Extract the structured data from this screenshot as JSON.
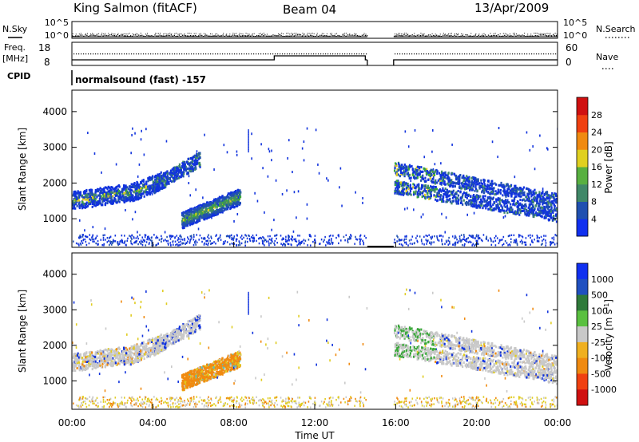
{
  "header": {
    "station": "King Salmon (fitACF)",
    "beam": "Beam 04",
    "date": "13/Apr/2009"
  },
  "side_labels": {
    "nsky": "N.Sky",
    "freq_top": "Freq.",
    "freq_unit": "[MHz]",
    "cpid": "CPID",
    "nsearch": "N.Search",
    "nave": "Nave"
  },
  "cpid_text": "normalsound (fast) -157",
  "colors": {
    "blue": "#1133dd",
    "green_dark": "#2f7a3a",
    "green": "#3aa83a",
    "yellow": "#e0cc20",
    "orange": "#f08a10",
    "red": "#e01010",
    "gray": "#c8c8c8"
  },
  "chart_data": [
    {
      "type": "line",
      "name": "noise",
      "x_range": [
        0,
        24
      ],
      "y_ticks_left": [
        "10^5",
        "10^0"
      ],
      "y_ticks_right": [
        "10^5",
        "10^0"
      ],
      "gaps": [
        [
          14.6,
          15.9
        ]
      ]
    },
    {
      "type": "line",
      "name": "frequency-nave",
      "x_range": [
        0,
        24
      ],
      "y_ticks_left": [
        "18",
        "8"
      ],
      "y_ticks_right": [
        "60",
        "0"
      ],
      "freq_step_at": [
        10.0,
        14.5
      ],
      "gaps": [
        [
          14.6,
          15.9
        ]
      ]
    },
    {
      "type": "heatmap",
      "name": "power",
      "ylabel": "Slant Range [km]",
      "x_range": [
        0,
        24
      ],
      "ylim": [
        200,
        4600
      ],
      "yticks": [
        "1000",
        "2000",
        "3000",
        "4000"
      ],
      "colorbar": {
        "label": "Power [dB]",
        "ticks": [
          "4",
          "8",
          "12",
          "16",
          "20",
          "24",
          "28"
        ],
        "colors": [
          "#1030f0",
          "#2050b0",
          "#408868",
          "#58b040",
          "#e0d020",
          "#f08a10",
          "#f04010",
          "#d01010"
        ]
      },
      "features": [
        {
          "t": [
            0.0,
            4.2
          ],
          "range": [
            1400,
            1900
          ]
        },
        {
          "t": [
            4.2,
            5.5
          ],
          "range": [
            2000,
            2600
          ]
        },
        {
          "t": [
            5.0,
            8.3
          ],
          "range": [
            900,
            1700
          ]
        },
        {
          "t": [
            15.9,
            24.0
          ],
          "range": [
            1000,
            2600
          ]
        }
      ]
    },
    {
      "type": "heatmap",
      "name": "velocity",
      "ylabel": "Slant Range [km]",
      "x_range": [
        0,
        24
      ],
      "ylim": [
        200,
        4600
      ],
      "yticks": [
        "1000",
        "2000",
        "3000",
        "4000"
      ],
      "xticks": [
        "00:00",
        "04:00",
        "08:00",
        "12:00",
        "16:00",
        "20:00",
        "00:00"
      ],
      "xlabel": "Time UT",
      "colorbar": {
        "label": "Velocity [m s",
        "label_sup": "-1",
        "label_end": "]",
        "ticks": [
          "1000",
          "500",
          "100",
          "25",
          "-25",
          "-100",
          "-500",
          "-1000"
        ],
        "colors": [
          "#1030f0",
          "#2050c0",
          "#2f7a3a",
          "#5ac040",
          "#c8c8c8",
          "#f0b020",
          "#f08a10",
          "#f04010",
          "#d01010"
        ]
      },
      "features": [
        {
          "t": [
            0.0,
            5.5
          ],
          "range": [
            1300,
            2600
          ],
          "color": "gray"
        },
        {
          "t": [
            5.0,
            8.3
          ],
          "range": [
            900,
            1700
          ],
          "color": "orange"
        },
        {
          "t": [
            15.9,
            24.0
          ],
          "range": [
            1000,
            2600
          ],
          "color": "gray"
        }
      ]
    }
  ]
}
